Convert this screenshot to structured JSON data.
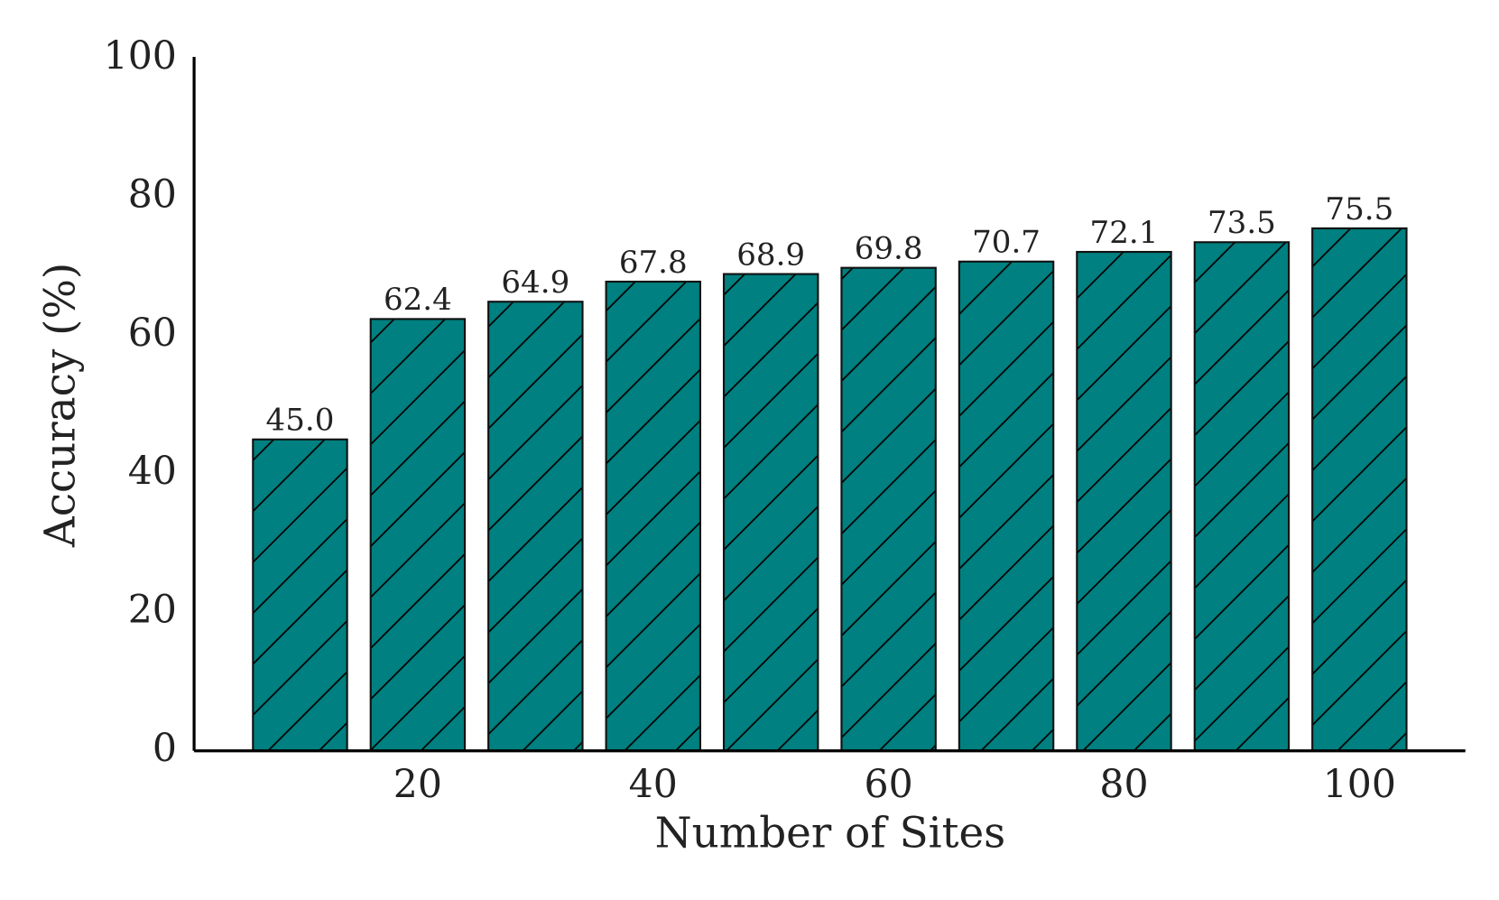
{
  "chart_data": {
    "type": "bar",
    "x_label": "Number of Sites",
    "y_label": "Accuracy (%)",
    "x": [
      10,
      20,
      30,
      40,
      50,
      60,
      70,
      80,
      90,
      100
    ],
    "values": [
      45.0,
      62.4,
      64.9,
      67.8,
      68.9,
      69.8,
      70.7,
      72.1,
      73.5,
      75.5
    ],
    "value_labels": [
      "45.0",
      "62.4",
      "64.9",
      "67.8",
      "68.9",
      "69.8",
      "70.7",
      "72.1",
      "73.5",
      "75.5"
    ],
    "color": "#008080",
    "xlim": [
      1,
      109
    ],
    "xticks": [
      20,
      40,
      60,
      80,
      100
    ],
    "ylim": [
      0,
      100
    ],
    "yticks": [
      0,
      20,
      40,
      60,
      80,
      100
    ],
    "grid": false
  }
}
